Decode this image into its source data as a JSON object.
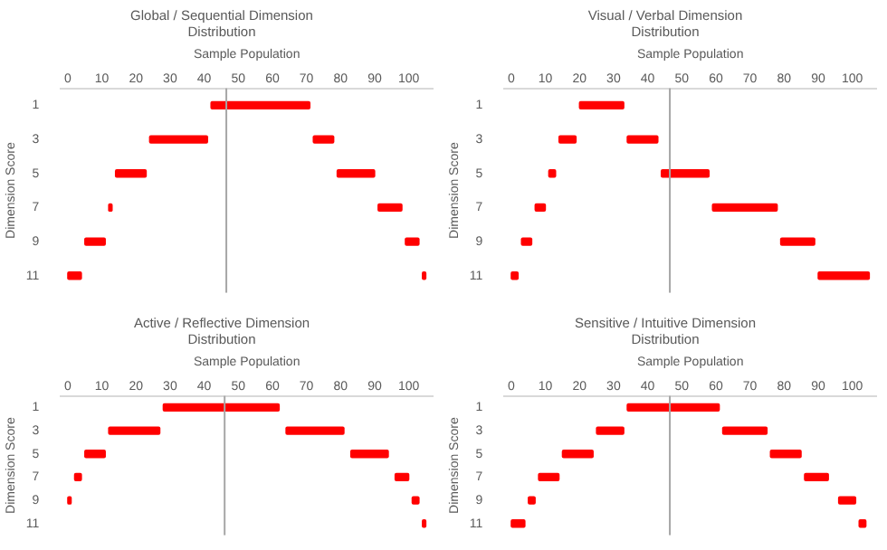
{
  "chart_data": [
    {
      "type": "bar",
      "orientation": "horizontal",
      "title": "Global / Sequential Dimension Distribution",
      "xlabel": "Sample Population",
      "ylabel": "Dimension Score",
      "categories": [
        "1",
        "3",
        "5",
        "7",
        "9",
        "11"
      ],
      "series": [
        {
          "color": "#ff0000",
          "base": [
            null,
            24,
            14,
            12,
            5,
            0
          ],
          "values": [
            null,
            17,
            9,
            1,
            6,
            4
          ]
        },
        {
          "color": "#ff0000",
          "base": [
            42,
            72,
            79,
            91,
            99,
            104
          ],
          "values": [
            29,
            6,
            11,
            7,
            4,
            1
          ]
        }
      ],
      "xlim": [
        -2,
        107
      ],
      "xticks": [
        0,
        10,
        20,
        30,
        40,
        50,
        60,
        70,
        80,
        90,
        100
      ],
      "ref_lines": [
        {
          "axis": "x",
          "value": 46.5,
          "color": "#a6a6a6"
        }
      ],
      "grid": false,
      "legend": false
    },
    {
      "type": "bar",
      "orientation": "horizontal",
      "title": "Visual / Verbal Dimension Distribution",
      "xlabel": "Sample Population",
      "ylabel": "Dimension Score",
      "categories": [
        "1",
        "3",
        "5",
        "7",
        "9",
        "11"
      ],
      "series": [
        {
          "color": "#ff0000",
          "base": [
            20,
            14,
            11,
            7,
            3,
            0
          ],
          "values": [
            13,
            5,
            2,
            3,
            3,
            2
          ]
        },
        {
          "color": "#ff0000",
          "base": [
            null,
            34,
            44,
            59,
            79,
            90
          ],
          "values": [
            null,
            9,
            14,
            19,
            10,
            15
          ]
        }
      ],
      "xlim": [
        -2,
        107
      ],
      "xticks": [
        0,
        10,
        20,
        30,
        40,
        50,
        60,
        70,
        80,
        90,
        100
      ],
      "ref_lines": [
        {
          "axis": "x",
          "value": 46.5,
          "color": "#a6a6a6"
        }
      ],
      "grid": false,
      "legend": false
    },
    {
      "type": "bar",
      "orientation": "horizontal",
      "title": "Active / Reflective Dimension Distribution",
      "xlabel": "Sample Population",
      "ylabel": "Dimension Score",
      "categories": [
        "1",
        "3",
        "5",
        "7",
        "9",
        "11"
      ],
      "series": [
        {
          "color": "#ff0000",
          "base": [
            null,
            12,
            5,
            2,
            0,
            null
          ],
          "values": [
            null,
            15,
            6,
            2,
            1,
            null
          ]
        },
        {
          "color": "#ff0000",
          "base": [
            28,
            64,
            83,
            96,
            101,
            104
          ],
          "values": [
            34,
            17,
            11,
            4,
            2,
            1
          ]
        }
      ],
      "xlim": [
        -2,
        107
      ],
      "xticks": [
        0,
        10,
        20,
        30,
        40,
        50,
        60,
        70,
        80,
        90,
        100
      ],
      "ref_lines": [
        {
          "axis": "x",
          "value": 46,
          "color": "#a6a6a6"
        }
      ],
      "grid": false,
      "legend": false
    },
    {
      "type": "bar",
      "orientation": "horizontal",
      "title": "Sensitive / Intuitive Dimension Distribution",
      "xlabel": "Sample Population",
      "ylabel": "Dimension Score",
      "categories": [
        "1",
        "3",
        "5",
        "7",
        "9",
        "11"
      ],
      "series": [
        {
          "color": "#ff0000",
          "base": [
            null,
            25,
            15,
            8,
            5,
            0
          ],
          "values": [
            null,
            8,
            9,
            6,
            2,
            4
          ]
        },
        {
          "color": "#ff0000",
          "base": [
            34,
            62,
            76,
            86,
            96,
            102
          ],
          "values": [
            27,
            13,
            9,
            7,
            5,
            2
          ]
        }
      ],
      "xlim": [
        -2,
        107
      ],
      "xticks": [
        0,
        10,
        20,
        30,
        40,
        50,
        60,
        70,
        80,
        90,
        100
      ],
      "ref_lines": [
        {
          "axis": "x",
          "value": 46.5,
          "color": "#a6a6a6"
        }
      ],
      "grid": false,
      "legend": false
    }
  ]
}
